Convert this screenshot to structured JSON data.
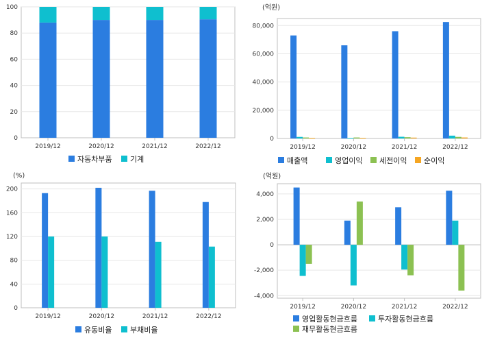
{
  "chart_data": [
    {
      "type": "bar",
      "stacked": true,
      "categories": [
        "2019/12",
        "2020/12",
        "2021/12",
        "2022/12"
      ],
      "series": [
        {
          "name": "자동차부품",
          "values": [
            88,
            90,
            90,
            90.5
          ]
        },
        {
          "name": "기계",
          "values": [
            12,
            10,
            10,
            9.5
          ]
        }
      ],
      "unit": "",
      "ylim": [
        0,
        100
      ],
      "yticks": [
        0,
        20,
        40,
        60,
        80,
        100
      ],
      "ytick_labels": [
        "0",
        "20",
        "40",
        "60",
        "80",
        "100"
      ],
      "colors": [
        "#2b7de0",
        "#0fbfcf"
      ],
      "legend": "bottom",
      "grid": true
    },
    {
      "type": "bar",
      "categories": [
        "2019/12",
        "2020/12",
        "2021/12",
        "2022/12"
      ],
      "series": [
        {
          "name": "매출액",
          "values": [
            73000,
            66000,
            76000,
            82500
          ]
        },
        {
          "name": "영업이익",
          "values": [
            1100,
            300,
            1200,
            2000
          ]
        },
        {
          "name": "세전이익",
          "values": [
            700,
            700,
            900,
            1100
          ]
        },
        {
          "name": "순이익",
          "values": [
            400,
            400,
            600,
            700
          ]
        }
      ],
      "unit": "(억원)",
      "ylim": [
        0,
        85000
      ],
      "yticks": [
        0,
        20000,
        40000,
        60000,
        80000
      ],
      "ytick_labels": [
        "0",
        "20,000",
        "40,000",
        "60,000",
        "80,000"
      ],
      "colors": [
        "#2b7de0",
        "#0fbfcf",
        "#8cc152",
        "#f5a623"
      ],
      "legend": "bottom",
      "grid": true
    },
    {
      "type": "bar",
      "categories": [
        "2019/12",
        "2020/12",
        "2021/12",
        "2022/12"
      ],
      "series": [
        {
          "name": "유동비율",
          "values": [
            193,
            202,
            197,
            178
          ]
        },
        {
          "name": "부채비율",
          "values": [
            120,
            120,
            111,
            103
          ]
        }
      ],
      "unit": "(%)",
      "ylim": [
        0,
        210
      ],
      "yticks": [
        0,
        40,
        80,
        120,
        160,
        200
      ],
      "ytick_labels": [
        "0",
        "40",
        "80",
        "120",
        "160",
        "200"
      ],
      "colors": [
        "#2b7de0",
        "#0fbfcf"
      ],
      "legend": "bottom",
      "grid": true
    },
    {
      "type": "bar",
      "categories": [
        "2019/12",
        "2020/12",
        "2021/12",
        "2022/12"
      ],
      "series": [
        {
          "name": "영업활동현금흐름",
          "values": [
            4500,
            1900,
            2950,
            4250
          ]
        },
        {
          "name": "투자활동현금흐름",
          "values": [
            -2450,
            -3200,
            -1950,
            1900
          ]
        },
        {
          "name": "재무활동현금흐름",
          "values": [
            -1500,
            3400,
            -2400,
            -3600
          ]
        }
      ],
      "unit": "(억원)",
      "ylim": [
        -4200,
        4800
      ],
      "yticks": [
        -4000,
        -2000,
        0,
        2000,
        4000
      ],
      "ytick_labels": [
        "-4,000",
        "-2,000",
        "0",
        "2,000",
        "4,000"
      ],
      "colors": [
        "#2b7de0",
        "#0fbfcf",
        "#8cc152"
      ],
      "legend": "bottom",
      "grid": true
    }
  ]
}
